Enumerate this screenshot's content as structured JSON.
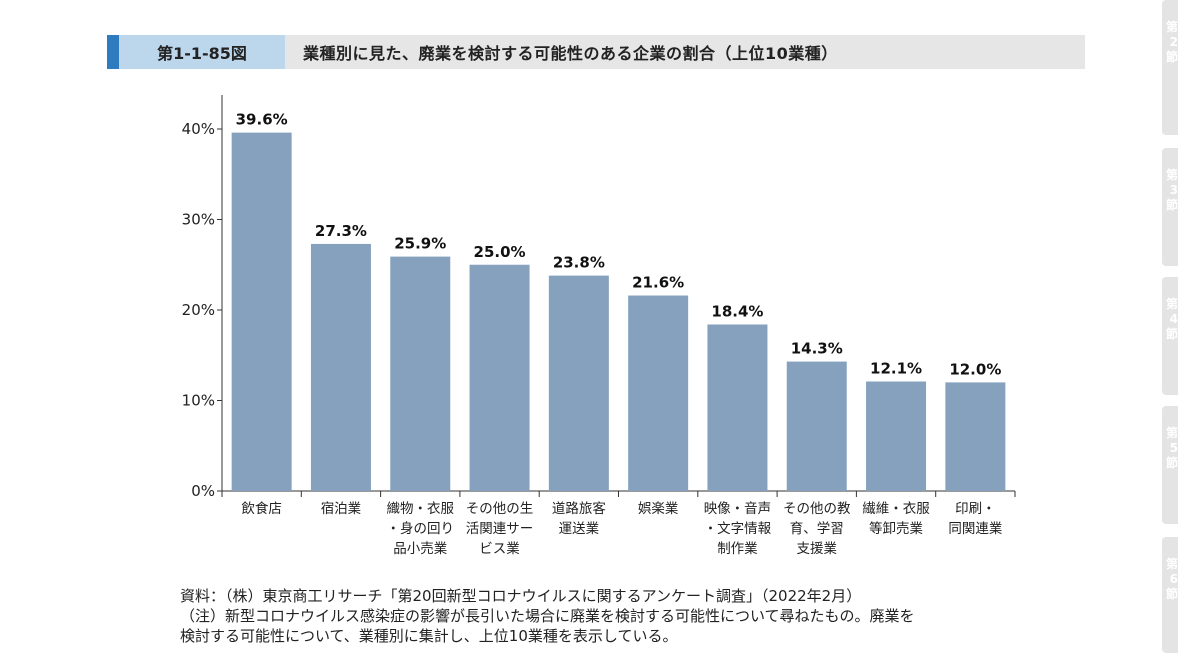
{
  "header": {
    "figure_label": "第1-1-85図",
    "title": "業種別に見た、廃業を検討する可能性のある企業の割合（上位10業種）"
  },
  "colors": {
    "accent": "#2f7bbf",
    "label_box": "#bcd6ec",
    "header_bg": "#e6e6e6",
    "bar": "#85a1bd"
  },
  "chart_data": {
    "type": "bar",
    "categories": [
      [
        "飲食店"
      ],
      [
        "宿泊業"
      ],
      [
        "織物・衣服",
        "・身の回り",
        "品小売業"
      ],
      [
        "その他の生",
        "活関連サー",
        "ビス業"
      ],
      [
        "道路旅客",
        "運送業"
      ],
      [
        "娯楽業"
      ],
      [
        "映像・音声",
        "・文字情報",
        "制作業"
      ],
      [
        "その他の教",
        "育、学習",
        "支援業"
      ],
      [
        "繊維・衣服",
        "等卸売業"
      ],
      [
        "印刷・",
        "同関連業"
      ]
    ],
    "values": [
      39.6,
      27.3,
      25.9,
      25.0,
      23.8,
      21.6,
      18.4,
      14.3,
      12.1,
      12.0
    ],
    "value_labels": [
      "39.6%",
      "27.3%",
      "25.9%",
      "25.0%",
      "23.8%",
      "21.6%",
      "18.4%",
      "14.3%",
      "12.1%",
      "12.0%"
    ],
    "ylim": [
      0,
      40
    ],
    "yticks": [
      0,
      10,
      20,
      30,
      40
    ],
    "ytick_labels": [
      "0%",
      "10%",
      "20%",
      "30%",
      "40%"
    ],
    "grid": false,
    "legend": "none",
    "xlabel": "",
    "ylabel": ""
  },
  "notes": {
    "source": "資料：（株）東京商工リサーチ「第20回新型コロナウイルスに関するアンケート調査」（2022年2月）",
    "note_line1": "（注）新型コロナウイルス感染症の影響が長引いた場合に廃業を検討する可能性について尋ねたもの。廃業を",
    "note_line2": "検討する可能性について、業種別に集計し、上位10業種を表示している。"
  },
  "side_tabs": [
    {
      "label": "第\n2\n節"
    },
    {
      "label": "第\n3\n節"
    },
    {
      "label": "第\n4\n節"
    },
    {
      "label": "第\n5\n節"
    },
    {
      "label": "第\n6\n節"
    }
  ]
}
